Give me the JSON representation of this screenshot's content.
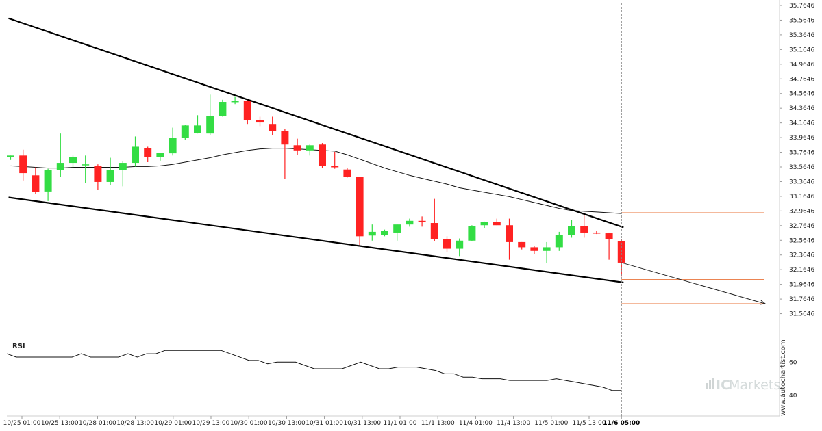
{
  "chart_data": [
    {
      "type": "candlestick",
      "title": "",
      "ylim": [
        31.3646,
        35.7646
      ],
      "y_ticks": [
        "35.7646",
        "35.5646",
        "35.3646",
        "35.1646",
        "34.9646",
        "34.7646",
        "34.5646",
        "34.3646",
        "34.1646",
        "33.9646",
        "33.7646",
        "33.5646",
        "33.3646",
        "33.1646",
        "32.9646",
        "32.7646",
        "32.5646",
        "32.3646",
        "32.1646",
        "31.9646",
        "31.7646",
        "31.5646"
      ],
      "x_ticks": [
        "10/25 01:00",
        "10/25 13:00",
        "10/28 01:00",
        "10/28 13:00",
        "10/29 01:00",
        "10/29 13:00",
        "10/30 01:00",
        "10/30 13:00",
        "10/31 01:00",
        "10/31 13:00",
        "11/1 01:00",
        "11/1 13:00",
        "11/4 01:00",
        "11/4 13:00",
        "11/5 01:00",
        "11/5 13:00",
        "11/6 05:00"
      ],
      "candles": [
        {
          "o": 33.7,
          "h": 33.72,
          "l": 33.66,
          "c": 33.72
        },
        {
          "o": 33.72,
          "h": 33.8,
          "l": 33.38,
          "c": 33.48
        },
        {
          "o": 33.45,
          "h": 33.56,
          "l": 33.2,
          "c": 33.22
        },
        {
          "o": 33.23,
          "h": 33.54,
          "l": 33.1,
          "c": 33.52
        },
        {
          "o": 33.52,
          "h": 34.02,
          "l": 33.43,
          "c": 33.62
        },
        {
          "o": 33.62,
          "h": 33.72,
          "l": 33.55,
          "c": 33.7
        },
        {
          "o": 33.6,
          "h": 33.72,
          "l": 33.35,
          "c": 33.6
        },
        {
          "o": 33.58,
          "h": 33.6,
          "l": 33.25,
          "c": 33.36
        },
        {
          "o": 33.36,
          "h": 33.69,
          "l": 33.32,
          "c": 33.52
        },
        {
          "o": 33.52,
          "h": 33.64,
          "l": 33.3,
          "c": 33.62
        },
        {
          "o": 33.62,
          "h": 33.98,
          "l": 33.57,
          "c": 33.84
        },
        {
          "o": 33.82,
          "h": 33.84,
          "l": 33.63,
          "c": 33.7
        },
        {
          "o": 33.7,
          "h": 33.76,
          "l": 33.65,
          "c": 33.76
        },
        {
          "o": 33.75,
          "h": 34.1,
          "l": 33.72,
          "c": 33.96
        },
        {
          "o": 33.96,
          "h": 34.14,
          "l": 33.93,
          "c": 34.13
        },
        {
          "o": 34.03,
          "h": 34.27,
          "l": 34.02,
          "c": 34.13
        },
        {
          "o": 34.02,
          "h": 34.55,
          "l": 34.0,
          "c": 34.26
        },
        {
          "o": 34.26,
          "h": 34.48,
          "l": 34.25,
          "c": 34.45
        },
        {
          "o": 34.45,
          "h": 34.52,
          "l": 34.42,
          "c": 34.46
        },
        {
          "o": 34.46,
          "h": 34.48,
          "l": 34.15,
          "c": 34.2
        },
        {
          "o": 34.2,
          "h": 34.25,
          "l": 34.12,
          "c": 34.17
        },
        {
          "o": 34.15,
          "h": 34.25,
          "l": 34.0,
          "c": 34.05
        },
        {
          "o": 34.05,
          "h": 34.08,
          "l": 33.4,
          "c": 33.87
        },
        {
          "o": 33.86,
          "h": 33.95,
          "l": 33.73,
          "c": 33.79
        },
        {
          "o": 33.79,
          "h": 33.87,
          "l": 33.72,
          "c": 33.86
        },
        {
          "o": 33.87,
          "h": 33.89,
          "l": 33.55,
          "c": 33.58
        },
        {
          "o": 33.58,
          "h": 33.77,
          "l": 33.54,
          "c": 33.56
        },
        {
          "o": 33.53,
          "h": 33.55,
          "l": 33.42,
          "c": 33.43
        },
        {
          "o": 33.43,
          "h": 33.43,
          "l": 32.5,
          "c": 32.62
        },
        {
          "o": 32.63,
          "h": 32.78,
          "l": 32.56,
          "c": 32.68
        },
        {
          "o": 32.64,
          "h": 32.71,
          "l": 32.62,
          "c": 32.69
        },
        {
          "o": 32.67,
          "h": 32.78,
          "l": 32.56,
          "c": 32.78
        },
        {
          "o": 32.78,
          "h": 32.86,
          "l": 32.75,
          "c": 32.83
        },
        {
          "o": 32.83,
          "h": 32.89,
          "l": 32.75,
          "c": 32.81
        },
        {
          "o": 32.8,
          "h": 33.13,
          "l": 32.55,
          "c": 32.58
        },
        {
          "o": 32.58,
          "h": 32.62,
          "l": 32.4,
          "c": 32.45
        },
        {
          "o": 32.45,
          "h": 32.59,
          "l": 32.35,
          "c": 32.56
        },
        {
          "o": 32.56,
          "h": 32.77,
          "l": 32.55,
          "c": 32.76
        },
        {
          "o": 32.77,
          "h": 32.82,
          "l": 32.73,
          "c": 32.81
        },
        {
          "o": 32.81,
          "h": 32.86,
          "l": 32.77,
          "c": 32.77
        },
        {
          "o": 32.77,
          "h": 32.86,
          "l": 32.3,
          "c": 32.54
        },
        {
          "o": 32.54,
          "h": 32.54,
          "l": 32.44,
          "c": 32.47
        },
        {
          "o": 32.47,
          "h": 32.49,
          "l": 32.38,
          "c": 32.42
        },
        {
          "o": 32.42,
          "h": 32.54,
          "l": 32.25,
          "c": 32.47
        },
        {
          "o": 32.47,
          "h": 32.68,
          "l": 32.42,
          "c": 32.64
        },
        {
          "o": 32.64,
          "h": 32.84,
          "l": 32.6,
          "c": 32.76
        },
        {
          "o": 32.76,
          "h": 32.93,
          "l": 32.6,
          "c": 32.67
        },
        {
          "o": 32.67,
          "h": 32.69,
          "l": 32.65,
          "c": 32.66
        },
        {
          "o": 32.66,
          "h": 32.67,
          "l": 32.3,
          "c": 32.58
        },
        {
          "o": 32.55,
          "h": 32.58,
          "l": 32.07,
          "c": 32.26
        }
      ],
      "moving_average": [
        33.58,
        33.57,
        33.56,
        33.55,
        33.55,
        33.56,
        33.56,
        33.56,
        33.56,
        33.56,
        33.57,
        33.57,
        33.58,
        33.6,
        33.63,
        33.66,
        33.69,
        33.73,
        33.76,
        33.79,
        33.81,
        33.82,
        33.82,
        33.81,
        33.8,
        33.79,
        33.78,
        33.73,
        33.67,
        33.61,
        33.55,
        33.5,
        33.45,
        33.41,
        33.37,
        33.33,
        33.28,
        33.25,
        33.22,
        33.19,
        33.16,
        33.12,
        33.08,
        33.04,
        33.0,
        32.97,
        32.96,
        32.95,
        32.94,
        32.93
      ],
      "pattern_lines": {
        "upper": {
          "from": [
            0,
            35.59
          ],
          "to": [
            49,
            32.74
          ]
        },
        "lower": {
          "from": [
            0,
            33.15
          ],
          "to": [
            49,
            31.99
          ]
        }
      },
      "projection": {
        "from": [
          49,
          32.26
        ],
        "to": [
          58,
          31.7
        ]
      },
      "levels": [
        32.94,
        32.03,
        31.7
      ],
      "colors": {
        "up": "#33dd44",
        "down": "#ff2222",
        "level": "#e8733a",
        "line": "#000000",
        "ma": "#111111"
      }
    },
    {
      "type": "line",
      "title": "RSI",
      "ylim": [
        31,
        72
      ],
      "y_ticks": [
        "60",
        "40"
      ],
      "values": [
        65,
        63,
        63,
        63,
        63,
        63,
        63,
        63,
        65,
        63,
        63,
        63,
        63,
        65,
        63,
        65,
        65,
        67,
        67,
        67,
        67,
        67,
        67,
        67,
        65,
        63,
        61,
        61,
        59,
        60,
        60,
        60,
        58,
        56,
        56,
        56,
        56,
        58,
        60,
        58,
        56,
        56,
        57,
        57,
        57,
        56,
        55,
        53,
        53,
        51,
        51,
        50,
        50,
        50,
        49,
        49,
        49,
        49,
        49,
        50,
        49,
        48,
        47,
        46,
        45,
        43,
        43
      ],
      "color": "#111111"
    }
  ],
  "watermark": {
    "site": "www.autochartist.com",
    "brand_ic": "IC",
    "brand_markets": "Markets"
  }
}
